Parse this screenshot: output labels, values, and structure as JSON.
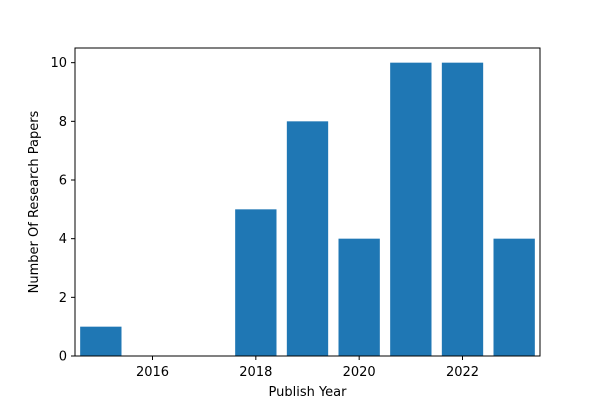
{
  "chart_data": {
    "type": "bar",
    "title": "",
    "xlabel": "Publish Year",
    "ylabel": "Number Of Research Papers",
    "x": [
      2015,
      2018,
      2019,
      2020,
      2021,
      2022,
      2023
    ],
    "values": [
      1,
      5,
      8,
      4,
      10,
      10,
      4
    ],
    "xlim": [
      2014.5,
      2023.5
    ],
    "ylim": [
      0,
      10.5
    ],
    "xticks": [
      2016,
      2018,
      2020,
      2022
    ],
    "yticks": [
      0,
      2,
      4,
      6,
      8,
      10
    ],
    "bar_color": "#1f77b4",
    "grid": false
  }
}
